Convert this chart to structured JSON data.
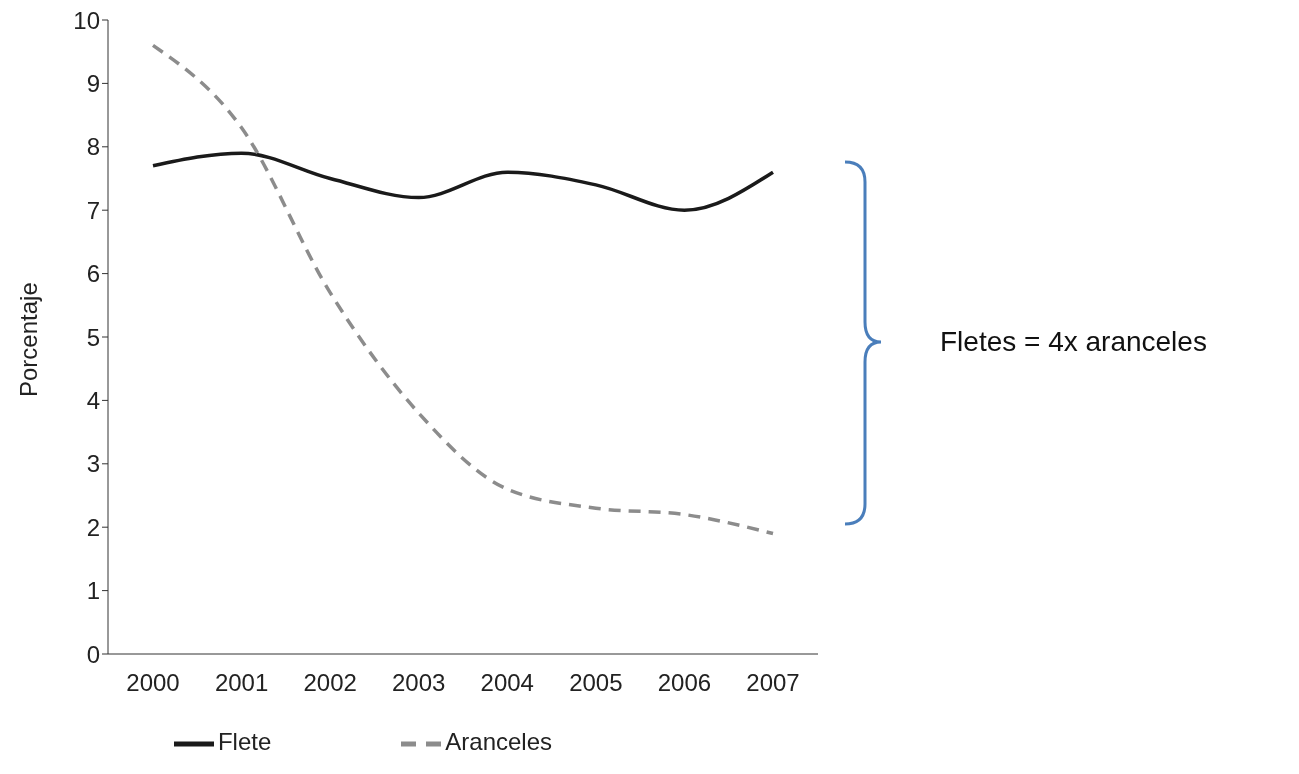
{
  "chart_data": {
    "type": "line",
    "ylabel": "Porcentaje",
    "categories": [
      "2000",
      "2001",
      "2002",
      "2003",
      "2004",
      "2005",
      "2006",
      "2007"
    ],
    "series": [
      {
        "name": "Flete",
        "color": "#1a1a1a",
        "line_style": "solid",
        "values": [
          7.7,
          7.9,
          7.5,
          7.2,
          7.6,
          7.4,
          7.0,
          7.6
        ]
      },
      {
        "name": "Aranceles",
        "color": "#8c8c8c",
        "line_style": "dashed",
        "values": [
          9.6,
          8.3,
          5.7,
          3.8,
          2.6,
          2.3,
          2.2,
          1.9
        ]
      }
    ],
    "ylim": [
      0,
      10
    ],
    "yticks": [
      0,
      1,
      2,
      3,
      4,
      5,
      6,
      7,
      8,
      9,
      10
    ],
    "grid": false,
    "legend": "bottom",
    "marker": "none",
    "annotations": [
      "Fletes = 4x aranceles"
    ]
  }
}
